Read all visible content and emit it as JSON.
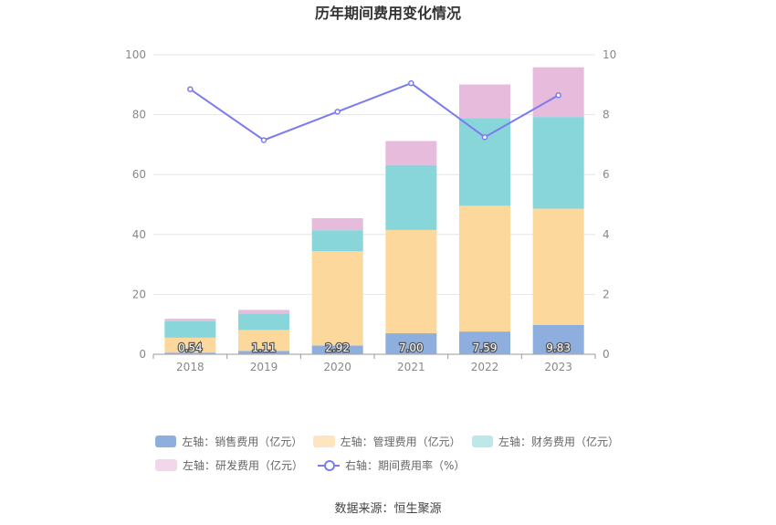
{
  "chart_data": {
    "type": "bar",
    "title": "历年期间费用变化情况",
    "categories": [
      "2018",
      "2019",
      "2020",
      "2021",
      "2022",
      "2023"
    ],
    "y_left": {
      "ylim": [
        0,
        100
      ],
      "ticks": [
        0,
        20,
        40,
        60,
        80,
        100
      ]
    },
    "y_right": {
      "ylim": [
        0,
        10
      ],
      "ticks": [
        0,
        2,
        4,
        6,
        8,
        10
      ]
    },
    "series": [
      {
        "name": "左轴：销售费用（亿元）",
        "axis": "left",
        "stack": true,
        "color": "#8eaedd",
        "values": [
          0.54,
          1.11,
          2.92,
          7.0,
          7.59,
          9.83
        ],
        "labels": [
          "0.54",
          "1.11",
          "2.92",
          "7.00",
          "7.59",
          "9.83"
        ]
      },
      {
        "name": "左轴：管理费用（亿元）",
        "axis": "left",
        "stack": true,
        "color": "#fdd89c",
        "values": [
          5.0,
          7.0,
          31.5,
          34.5,
          42.0,
          38.8
        ]
      },
      {
        "name": "左轴：财务费用（亿元）",
        "axis": "left",
        "stack": true,
        "color": "#88d5da",
        "values": [
          5.5,
          5.5,
          7.0,
          21.7,
          29.3,
          30.6
        ]
      },
      {
        "name": "左轴：研发费用（亿元）",
        "axis": "left",
        "stack": true,
        "color": "#e6bbdb",
        "values": [
          0.8,
          1.2,
          4.0,
          8.0,
          11.2,
          16.6
        ]
      },
      {
        "name": "右轴：期间费用率（%）",
        "axis": "right",
        "type": "line",
        "color": "#7b7bf0",
        "values": [
          8.85,
          7.15,
          8.1,
          9.05,
          7.25,
          8.65
        ]
      }
    ],
    "legend_position": "bottom",
    "grid": true
  },
  "legend": {
    "items": [
      {
        "label": "左轴：销售费用（亿元）",
        "color": "#8eaedd",
        "kind": "bar"
      },
      {
        "label": "左轴：管理费用（亿元）",
        "color": "#fde6bf",
        "kind": "bar"
      },
      {
        "label": "左轴：财务费用（亿元）",
        "color": "#bde8ea",
        "kind": "bar"
      },
      {
        "label": "左轴：研发费用（亿元）",
        "color": "#f2d6ea",
        "kind": "bar"
      },
      {
        "label": "右轴：期间费用率（%）",
        "color": "#7b7bf0",
        "kind": "line"
      }
    ]
  },
  "footer": {
    "source": "数据来源：恒生聚源"
  }
}
